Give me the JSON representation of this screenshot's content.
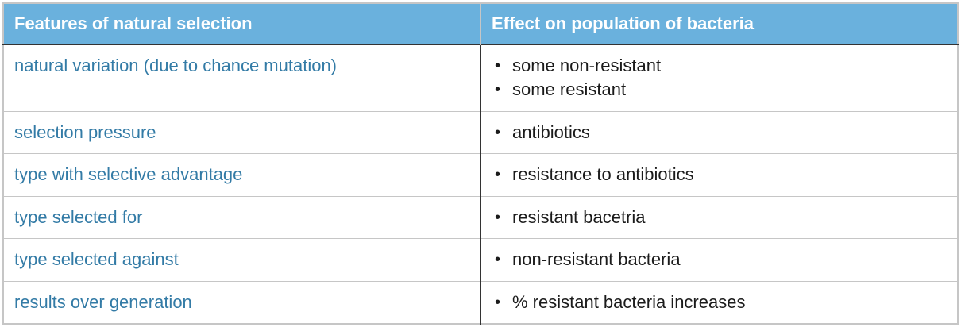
{
  "table": {
    "columns": [
      "Features of natural selection",
      "Effect on population of bacteria"
    ],
    "rows": [
      {
        "feature": "natural variation (due to chance mutation)",
        "effects": [
          "some non-resistant",
          "some resistant"
        ]
      },
      {
        "feature": "selection pressure",
        "effects": [
          "antibiotics"
        ]
      },
      {
        "feature": "type with selective advantage",
        "effects": [
          "resistance to antibiotics"
        ]
      },
      {
        "feature": "type selected for",
        "effects": [
          "resistant bacetria"
        ]
      },
      {
        "feature": "type selected against",
        "effects": [
          "non-resistant bacteria"
        ]
      },
      {
        "feature": "results over generation",
        "effects": [
          "% resistant bacteria increases"
        ]
      }
    ],
    "bullet_glyph": "•",
    "colors": {
      "header_bg": "#6ab1dd",
      "header_text": "#ffffff",
      "feature_text": "#337ba6",
      "effect_text": "#1b1b1b",
      "divider_dark": "#333333",
      "border_light": "#c6c6c6"
    }
  }
}
